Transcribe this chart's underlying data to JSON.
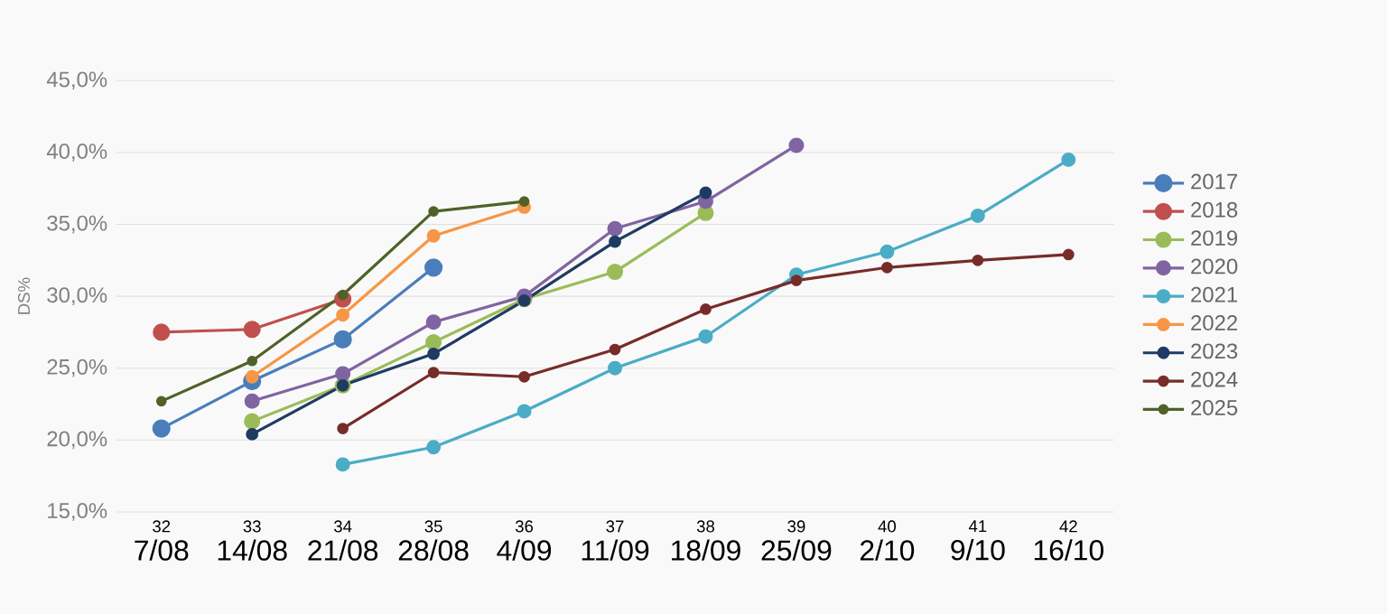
{
  "chart_data": {
    "type": "line",
    "ylabel": "DS%",
    "categories": [
      "7/08",
      "14/08",
      "21/08",
      "28/08",
      "4/09",
      "11/09",
      "18/09",
      "25/09",
      "2/10",
      "9/10",
      "16/10"
    ],
    "annotations": [
      "32",
      "33",
      "34",
      "35",
      "36",
      "37",
      "38",
      "39",
      "40",
      "41",
      "42"
    ],
    "ylim": [
      15,
      45
    ],
    "yticks": [
      {
        "value": 15,
        "label": "15,0%"
      },
      {
        "value": 20,
        "label": "20,0%"
      },
      {
        "value": 25,
        "label": "25,0%"
      },
      {
        "value": 30,
        "label": "30,0%"
      },
      {
        "value": 35,
        "label": "35,0%"
      },
      {
        "value": 40,
        "label": "40,0%"
      },
      {
        "value": 45,
        "label": "45,0%"
      }
    ],
    "grid": "y",
    "legend": "right",
    "marker": "circle",
    "series": [
      {
        "name": "2017",
        "color": "#4a7ebb",
        "values": [
          20.8,
          24.1,
          27.0,
          32.0,
          null,
          null,
          null,
          null,
          null,
          null,
          null
        ]
      },
      {
        "name": "2018",
        "color": "#c0504d",
        "values": [
          27.5,
          27.7,
          29.8,
          null,
          null,
          null,
          null,
          null,
          null,
          null,
          null
        ]
      },
      {
        "name": "2019",
        "color": "#9bbb59",
        "values": [
          null,
          21.3,
          23.8,
          26.8,
          29.8,
          31.7,
          35.8,
          null,
          null,
          null,
          null
        ]
      },
      {
        "name": "2020",
        "color": "#8064a2",
        "values": [
          null,
          22.7,
          24.6,
          28.2,
          30.0,
          34.7,
          36.6,
          40.5,
          null,
          null,
          null
        ]
      },
      {
        "name": "2021",
        "color": "#4bacc6",
        "values": [
          null,
          null,
          18.3,
          19.5,
          22.0,
          25.0,
          27.2,
          31.5,
          33.1,
          35.6,
          39.5
        ]
      },
      {
        "name": "2022",
        "color": "#f79646",
        "values": [
          null,
          24.4,
          28.7,
          34.2,
          36.2,
          null,
          null,
          null,
          null,
          null,
          null
        ]
      },
      {
        "name": "2023",
        "color": "#1f3b63",
        "values": [
          null,
          20.4,
          23.8,
          26.0,
          29.7,
          33.8,
          37.2,
          null,
          null,
          null,
          null
        ]
      },
      {
        "name": "2024",
        "color": "#772c2a",
        "values": [
          null,
          null,
          20.8,
          24.7,
          24.4,
          26.3,
          29.1,
          31.1,
          32.0,
          32.5,
          32.9
        ]
      },
      {
        "name": "2025",
        "color": "#4f6228",
        "values": [
          22.7,
          25.5,
          30.1,
          35.9,
          36.6,
          null,
          null,
          null,
          null,
          null,
          null
        ]
      }
    ]
  }
}
